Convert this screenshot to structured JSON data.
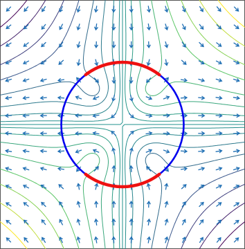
{
  "chart_data": {
    "type": "contour",
    "title": "",
    "xlabel": "",
    "ylabel": "",
    "xlim": [
      -2,
      2
    ],
    "ylim": [
      -2,
      2
    ],
    "grid": false,
    "legend": "none",
    "colormap": [
      "#440154",
      "#3b528b",
      "#21918c",
      "#5ec962",
      "#fde725"
    ],
    "streamfunction": {
      "description_free": true,
      "stagnation_flow_coefficient": 1.0,
      "vortex_centers": [
        [
          -0.45,
          0.55
        ],
        [
          0.45,
          0.55
        ],
        [
          -0.45,
          -0.55
        ],
        [
          0.45,
          -0.55
        ]
      ],
      "vortex_signs": [
        1,
        -1,
        -1,
        1
      ],
      "vortex_strength": 0.55
    },
    "contour_levels": [
      -3.2,
      -2.6,
      -2.0,
      -1.5,
      -1.0,
      -0.6,
      -0.3,
      -0.1,
      0.0,
      0.1,
      0.3,
      0.6,
      1.0,
      1.5,
      2.0,
      2.6,
      3.2
    ],
    "circle": {
      "center": [
        0,
        0
      ],
      "radius": 1.0,
      "color": "#0000ee"
    },
    "arcs": [
      {
        "name": "top",
        "theta_start_deg": 53,
        "theta_end_deg": 127,
        "color": "#ee1111"
      },
      {
        "name": "bottom",
        "theta_start_deg": 233,
        "theta_end_deg": 307,
        "color": "#ee1111"
      }
    ],
    "arrow_color": "#1f6fb4",
    "arrow_grid": {
      "nx": 14,
      "ny": 14
    }
  }
}
